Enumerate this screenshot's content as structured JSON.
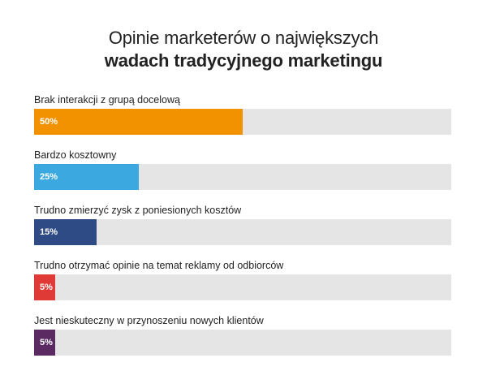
{
  "chart_data": {
    "type": "bar",
    "orientation": "horizontal",
    "title_line1": "Opinie marketerów o największych",
    "title_line2": "wadach tradycyjnego marketingu",
    "xlim": [
      0,
      100
    ],
    "bars": [
      {
        "label": "Brak interakcji z grupą docelową",
        "value": 50,
        "value_label": "50%",
        "color": "#f39200"
      },
      {
        "label": "Bardzo kosztowny",
        "value": 25,
        "value_label": "25%",
        "color": "#3ba9e0"
      },
      {
        "label": "Trudno zmierzyć zysk z poniesionych kosztów",
        "value": 15,
        "value_label": "15%",
        "color": "#2e4b85"
      },
      {
        "label": "Trudno otrzymać opinie na temat reklamy od odbiorców",
        "value": 5,
        "value_label": "5%",
        "color": "#e03a36"
      },
      {
        "label": "Jest nieskuteczny w przynoszeniu nowych klientów",
        "value": 5,
        "value_label": "5%",
        "color": "#5b2a63"
      }
    ],
    "track_color": "#e5e5e5"
  }
}
